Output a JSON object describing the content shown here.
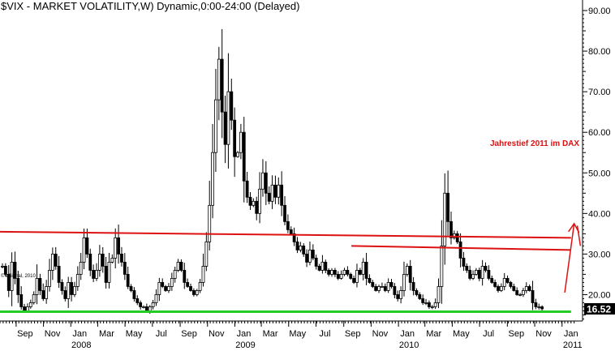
{
  "chart_data": {
    "type": "candlestick",
    "title": "$VIX - MARKET VOLATILITY,W) Dynamic,0:00-24:00 (Delayed)",
    "source_note": "© eSignal, 2010",
    "annotation": "Jahrestief 2011 im DAX",
    "last_price_label": "16.52",
    "ylim": [
      13.5,
      91
    ],
    "y_ticks": [
      "20.00",
      "30.00",
      "40.00",
      "50.00",
      "60.00",
      "70.00",
      "80.00",
      "90.00"
    ],
    "y_tick_values": [
      20,
      30,
      40,
      50,
      60,
      70,
      80,
      90
    ],
    "x_start": "2007-07-27",
    "month_ticks": [
      {
        "date": "2007-09-01",
        "label": "Sep"
      },
      {
        "date": "2007-11-01",
        "label": "Nov"
      },
      {
        "date": "2008-01-01",
        "label": "Jan",
        "year": "2008"
      },
      {
        "date": "2008-03-01",
        "label": "Mar"
      },
      {
        "date": "2008-05-01",
        "label": "May"
      },
      {
        "date": "2008-07-01",
        "label": "Jul"
      },
      {
        "date": "2008-09-01",
        "label": "Sep"
      },
      {
        "date": "2008-11-01",
        "label": "Nov"
      },
      {
        "date": "2009-01-01",
        "label": "Jan",
        "year": "2009"
      },
      {
        "date": "2009-03-01",
        "label": "Mar"
      },
      {
        "date": "2009-05-01",
        "label": "May"
      },
      {
        "date": "2009-07-01",
        "label": "Jul"
      },
      {
        "date": "2009-09-01",
        "label": "Sep"
      },
      {
        "date": "2009-11-01",
        "label": "Nov"
      },
      {
        "date": "2010-01-01",
        "label": "Jan",
        "year": "2010"
      },
      {
        "date": "2010-03-01",
        "label": "Mar"
      },
      {
        "date": "2010-05-01",
        "label": "May"
      },
      {
        "date": "2010-07-01",
        "label": "Jul"
      },
      {
        "date": "2010-09-01",
        "label": "Sep"
      },
      {
        "date": "2010-11-01",
        "label": "Nov"
      },
      {
        "date": "2011-01-01",
        "label": "Jan",
        "year": "2011"
      }
    ],
    "weekly_close": [
      27,
      25,
      21,
      28,
      24,
      20,
      17,
      16,
      17,
      18,
      20,
      24,
      21,
      19,
      22,
      26,
      30,
      27,
      23,
      21,
      19,
      23,
      20,
      22,
      25,
      28,
      34,
      30,
      26,
      24,
      26,
      30,
      27,
      23,
      28,
      29,
      34,
      30,
      28,
      25,
      22,
      21,
      19,
      18,
      17,
      17,
      16,
      17,
      18,
      20,
      23,
      22,
      21,
      22,
      24,
      26,
      28,
      26,
      23,
      22,
      21,
      20,
      21,
      23,
      27,
      33,
      42,
      55,
      68,
      78,
      65,
      57,
      70,
      63,
      54,
      55,
      60,
      48,
      44,
      42,
      43,
      40,
      46,
      50,
      45,
      43,
      47,
      44,
      47,
      42,
      38,
      36,
      35,
      33,
      31,
      32,
      30,
      28,
      31,
      29,
      27,
      26,
      28,
      26,
      25,
      26,
      25,
      24,
      25,
      26,
      25,
      24,
      23,
      26,
      25,
      28,
      24,
      23,
      22,
      21,
      22,
      22,
      21,
      23,
      22,
      20,
      19,
      21,
      25,
      27,
      23,
      21,
      20,
      19,
      18,
      18,
      17,
      17,
      18,
      22,
      32,
      45,
      38,
      34,
      35,
      33,
      29,
      27,
      26,
      24,
      25,
      26,
      24,
      27,
      26,
      24,
      23,
      22,
      21,
      22,
      24,
      23,
      22,
      21,
      20,
      20,
      21,
      22,
      21,
      18,
      17,
      17,
      16.5
    ],
    "overlay_lines": [
      {
        "color": "#dd1111",
        "points": [
          [
            "2007-07-27",
            35.5
          ],
          [
            "2011-01-21",
            34.0
          ]
        ]
      },
      {
        "color": "#dd1111",
        "points": [
          [
            "2009-09-18",
            32.0
          ],
          [
            "2011-01-21",
            31.0
          ]
        ]
      },
      {
        "color": "#22cc22",
        "points": [
          [
            "2007-07-27",
            15.8
          ],
          [
            "2011-01-21",
            15.8
          ]
        ]
      }
    ],
    "arrows": [
      {
        "color": "#dd1111",
        "from": [
          "2011-01-07",
          20.5
        ],
        "to": [
          "2011-01-28",
          37.5
        ]
      },
      {
        "color": "#dd1111",
        "from": [
          "2011-02-04",
          37.0
        ],
        "to": [
          "2011-02-11",
          32.0
        ]
      }
    ]
  }
}
